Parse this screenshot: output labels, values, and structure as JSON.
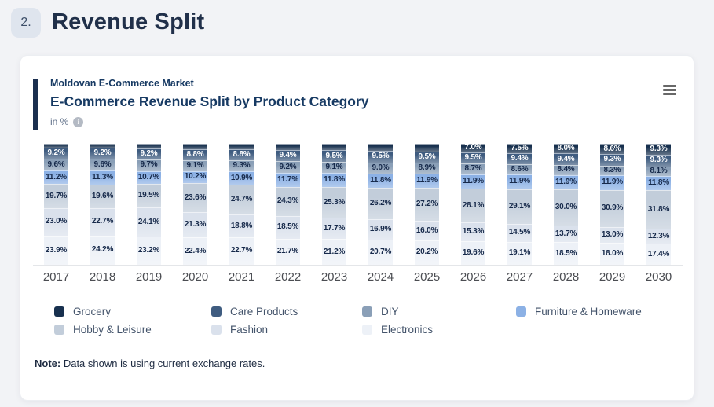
{
  "header": {
    "number": "2.",
    "title": "Revenue Split"
  },
  "card": {
    "kicker": "Moldovan E-Commerce Market",
    "title": "E-Commerce Revenue Split by Product Category",
    "unit": "in %",
    "note_label": "Note:",
    "note_text": " Data shown is using current exchange rates."
  },
  "icons": {
    "info": "i",
    "menu": "hamburger-export-menu"
  },
  "chart_data": {
    "type": "bar",
    "stacked": true,
    "unit": "%",
    "title": "E-Commerce Revenue Split by Product Category",
    "subtitle": "Moldovan E-Commerce Market",
    "ylabel": "in %",
    "ylim": [
      0,
      100
    ],
    "grid": false,
    "legend_position": "bottom",
    "categories": [
      "2017",
      "2018",
      "2019",
      "2020",
      "2021",
      "2022",
      "2023",
      "2024",
      "2025",
      "2026",
      "2027",
      "2028",
      "2029",
      "2030"
    ],
    "series": [
      {
        "name": "Grocery",
        "color": "#17304e",
        "label_color": "#ffffff",
        "values": [
          3.4,
          3.4,
          3.6,
          4.6,
          4.8,
          5.2,
          5.4,
          5.9,
          6.3,
          7.0,
          7.5,
          8.0,
          8.6,
          9.3
        ],
        "labels": [
          "",
          "",
          "",
          "",
          "",
          "",
          "",
          "",
          "",
          "7.0%",
          "7.5%",
          "8.0%",
          "8.6%",
          "9.3%"
        ]
      },
      {
        "name": "Care Products",
        "color": "#3f5c80",
        "label_color": "#ffffff",
        "values": [
          9.2,
          9.2,
          9.2,
          8.8,
          8.8,
          9.4,
          9.5,
          9.5,
          9.5,
          9.5,
          9.4,
          9.4,
          9.3,
          9.3
        ],
        "labels": [
          "9.2%",
          "9.2%",
          "9.2%",
          "8.8%",
          "8.8%",
          "9.4%",
          "9.5%",
          "9.5%",
          "9.5%",
          "9.5%",
          "9.4%",
          "9.4%",
          "9.3%",
          "9.3%"
        ]
      },
      {
        "name": "DIY",
        "color": "#8a9fb7",
        "label_color": "#16294a",
        "values": [
          9.6,
          9.6,
          9.7,
          9.1,
          9.3,
          9.2,
          9.1,
          9.0,
          8.9,
          8.7,
          8.6,
          8.4,
          8.3,
          8.1
        ],
        "labels": [
          "9.6%",
          "9.6%",
          "9.7%",
          "9.1%",
          "9.3%",
          "9.2%",
          "9.1%",
          "9.0%",
          "8.9%",
          "8.7%",
          "8.6%",
          "8.4%",
          "8.3%",
          "8.1%"
        ]
      },
      {
        "name": "Furniture & Homeware",
        "color": "#8cb1e5",
        "label_color": "#16294a",
        "values": [
          11.2,
          11.3,
          10.7,
          10.2,
          10.9,
          11.7,
          11.8,
          11.8,
          11.9,
          11.9,
          11.9,
          11.9,
          11.9,
          11.8
        ],
        "labels": [
          "11.2%",
          "11.3%",
          "10.7%",
          "10.2%",
          "10.9%",
          "11.7%",
          "11.8%",
          "11.8%",
          "11.9%",
          "11.9%",
          "11.9%",
          "11.9%",
          "11.9%",
          "11.8%"
        ]
      },
      {
        "name": "Hobby & Leisure",
        "color": "#c2cdda",
        "label_color": "#16294a",
        "values": [
          19.7,
          19.6,
          19.5,
          23.6,
          24.7,
          24.3,
          25.3,
          26.2,
          27.2,
          28.1,
          29.1,
          30.0,
          30.9,
          31.8
        ],
        "labels": [
          "19.7%",
          "19.6%",
          "19.5%",
          "23.6%",
          "24.7%",
          "24.3%",
          "25.3%",
          "26.2%",
          "27.2%",
          "28.1%",
          "29.1%",
          "30.0%",
          "30.9%",
          "31.8%"
        ]
      },
      {
        "name": "Fashion",
        "color": "#dae1ec",
        "label_color": "#16294a",
        "values": [
          23.0,
          22.7,
          24.1,
          21.3,
          18.8,
          18.5,
          17.7,
          16.9,
          16.0,
          15.3,
          14.5,
          13.7,
          13.0,
          12.3
        ],
        "labels": [
          "23.0%",
          "22.7%",
          "24.1%",
          "21.3%",
          "18.8%",
          "18.5%",
          "17.7%",
          "16.9%",
          "16.0%",
          "15.3%",
          "14.5%",
          "13.7%",
          "13.0%",
          "12.3%"
        ]
      },
      {
        "name": "Electronics",
        "color": "#edf1f7",
        "label_color": "#16294a",
        "values": [
          23.9,
          24.2,
          23.2,
          22.4,
          22.7,
          21.7,
          21.2,
          20.7,
          20.2,
          19.6,
          19.1,
          18.5,
          18.0,
          17.4
        ],
        "labels": [
          "23.9%",
          "24.2%",
          "23.2%",
          "22.4%",
          "22.7%",
          "21.7%",
          "21.2%",
          "20.7%",
          "20.2%",
          "19.6%",
          "19.1%",
          "18.5%",
          "18.0%",
          "17.4%"
        ]
      }
    ]
  }
}
